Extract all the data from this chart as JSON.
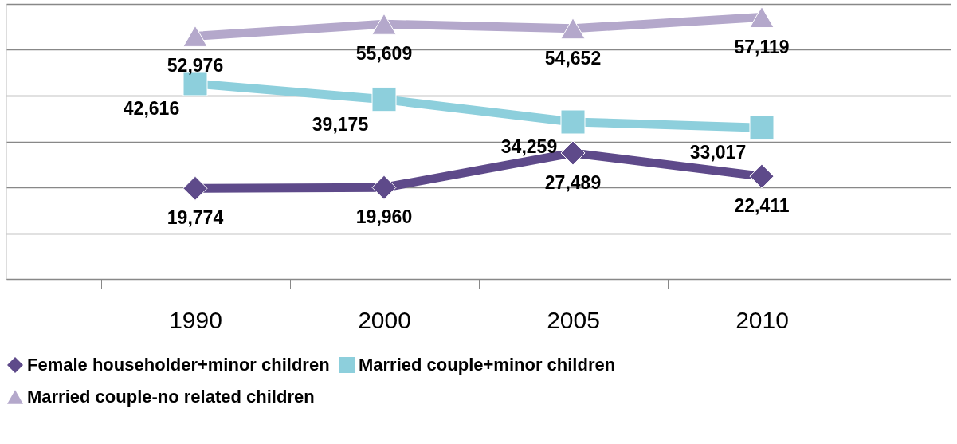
{
  "chart_data": {
    "type": "line",
    "categories": [
      "1990",
      "2000",
      "2005",
      "2010"
    ],
    "series": [
      {
        "name": "Female householder+minor children",
        "color": "#5e4a8a",
        "marker": "diamond",
        "values": [
          19774,
          19960,
          27489,
          22411
        ],
        "value_labels": [
          "19,774",
          "19,960",
          "27,489",
          "22,411"
        ]
      },
      {
        "name": "Married couple+minor children",
        "color": "#8dcfdc",
        "marker": "square",
        "values": [
          42616,
          39175,
          34259,
          33017
        ],
        "value_labels": [
          "42,616",
          "39,175",
          "34,259",
          "33,017"
        ]
      },
      {
        "name": "Married couple-no related children",
        "color": "#b4a8cb",
        "marker": "triangle",
        "values": [
          52976,
          55609,
          54652,
          57119
        ],
        "value_labels": [
          "52,976",
          "55,609",
          "54,652",
          "57,119"
        ]
      }
    ],
    "ylim": [
      0,
      60000
    ],
    "yticks": [
      {
        "value": 0,
        "label": null
      },
      {
        "value": 10000,
        "label": null
      },
      {
        "value": 20000,
        "label": null
      },
      {
        "value": 30000,
        "label": null
      },
      {
        "value": 40000,
        "label": null
      },
      {
        "value": 50000,
        "label": null
      },
      {
        "value": 60000,
        "label": null
      }
    ],
    "grid": "y",
    "legend": "bottom",
    "tick_labels": "x"
  }
}
